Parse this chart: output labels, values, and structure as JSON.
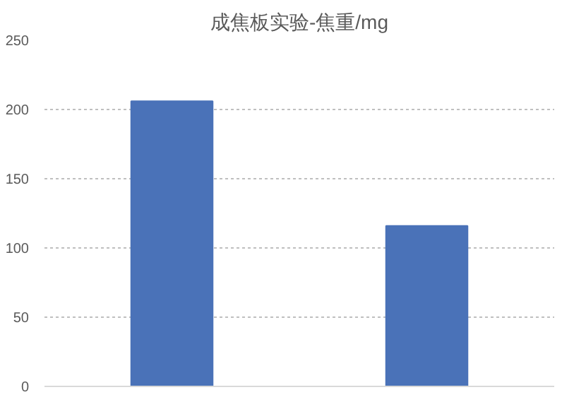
{
  "chart_data": {
    "type": "bar",
    "title": "成焦板实验-焦重/mg",
    "categories": [
      null,
      null
    ],
    "values": [
      206,
      116
    ],
    "color": "#4a72b8",
    "ylim": [
      0,
      250
    ],
    "yticks": [
      0,
      50,
      100,
      150,
      200,
      250
    ],
    "grid": "y"
  }
}
